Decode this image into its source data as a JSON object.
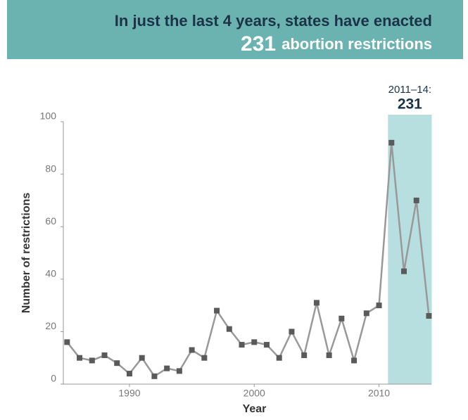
{
  "chart_data": {
    "type": "line",
    "title": "In just the last 4 years, states have enacted",
    "subtitle": "abortion restrictions",
    "x": [
      1985,
      1986,
      1987,
      1988,
      1989,
      1990,
      1991,
      1992,
      1993,
      1994,
      1995,
      1996,
      1997,
      1998,
      1999,
      2000,
      2001,
      2002,
      2003,
      2004,
      2005,
      2006,
      2007,
      2008,
      2009,
      2010,
      2011,
      2012,
      2013,
      2014
    ],
    "values": [
      16,
      10,
      9,
      11,
      8,
      4,
      10,
      3,
      6,
      5,
      13,
      10,
      28,
      21,
      15,
      16,
      15,
      10,
      20,
      11,
      31,
      11,
      25,
      9,
      27,
      30,
      92,
      43,
      70,
      26
    ],
    "color": "#999999",
    "marker_color": "#5a5a5a",
    "xlim": [
      1984.7,
      2014.2
    ],
    "xticks": [
      1990,
      2000,
      2010
    ],
    "ylim": [
      0,
      100
    ],
    "yticks": [
      0,
      20,
      40,
      60,
      80,
      100
    ],
    "xlabel": "Year",
    "ylabel": "Number of restrictions",
    "highlight_label": "2011–14:",
    "highlight_total": 231,
    "highlight_x": [
      2011,
      2014
    ],
    "highlight_color": "#b8dfe0",
    "grid": false
  }
}
